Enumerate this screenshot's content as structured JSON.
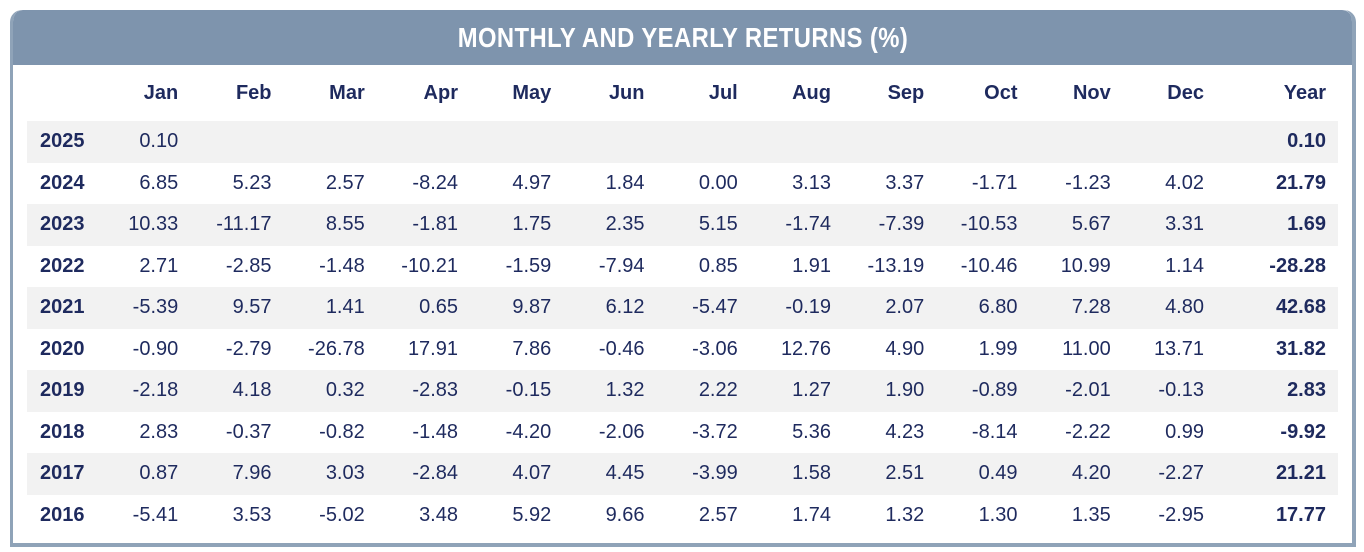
{
  "title": "MONTHLY AND YEARLY RETURNS (%)",
  "colors": {
    "header_bg": "#7E94AD",
    "border": "#8FA3B8",
    "text_navy": "#1E2A5E",
    "stripe_bg": "#F2F2F2"
  },
  "table": {
    "columns": [
      "Jan",
      "Feb",
      "Mar",
      "Apr",
      "May",
      "Jun",
      "Jul",
      "Aug",
      "Sep",
      "Oct",
      "Nov",
      "Dec",
      "Year"
    ],
    "rows": [
      {
        "year": "2025",
        "values": [
          "0.10",
          "",
          "",
          "",
          "",
          "",
          "",
          "",
          "",
          "",
          "",
          "",
          "0.10"
        ]
      },
      {
        "year": "2024",
        "values": [
          "6.85",
          "5.23",
          "2.57",
          "-8.24",
          "4.97",
          "1.84",
          "0.00",
          "3.13",
          "3.37",
          "-1.71",
          "-1.23",
          "4.02",
          "21.79"
        ]
      },
      {
        "year": "2023",
        "values": [
          "10.33",
          "-11.17",
          "8.55",
          "-1.81",
          "1.75",
          "2.35",
          "5.15",
          "-1.74",
          "-7.39",
          "-10.53",
          "5.67",
          "3.31",
          "1.69"
        ]
      },
      {
        "year": "2022",
        "values": [
          "2.71",
          "-2.85",
          "-1.48",
          "-10.21",
          "-1.59",
          "-7.94",
          "0.85",
          "1.91",
          "-13.19",
          "-10.46",
          "10.99",
          "1.14",
          "-28.28"
        ]
      },
      {
        "year": "2021",
        "values": [
          "-5.39",
          "9.57",
          "1.41",
          "0.65",
          "9.87",
          "6.12",
          "-5.47",
          "-0.19",
          "2.07",
          "6.80",
          "7.28",
          "4.80",
          "42.68"
        ]
      },
      {
        "year": "2020",
        "values": [
          "-0.90",
          "-2.79",
          "-26.78",
          "17.91",
          "7.86",
          "-0.46",
          "-3.06",
          "12.76",
          "4.90",
          "1.99",
          "11.00",
          "13.71",
          "31.82"
        ]
      },
      {
        "year": "2019",
        "values": [
          "-2.18",
          "4.18",
          "0.32",
          "-2.83",
          "-0.15",
          "1.32",
          "2.22",
          "1.27",
          "1.90",
          "-0.89",
          "-2.01",
          "-0.13",
          "2.83"
        ]
      },
      {
        "year": "2018",
        "values": [
          "2.83",
          "-0.37",
          "-0.82",
          "-1.48",
          "-4.20",
          "-2.06",
          "-3.72",
          "5.36",
          "4.23",
          "-8.14",
          "-2.22",
          "0.99",
          "-9.92"
        ]
      },
      {
        "year": "2017",
        "values": [
          "0.87",
          "7.96",
          "3.03",
          "-2.84",
          "4.07",
          "4.45",
          "-3.99",
          "1.58",
          "2.51",
          "0.49",
          "4.20",
          "-2.27",
          "21.21"
        ]
      },
      {
        "year": "2016",
        "values": [
          "-5.41",
          "3.53",
          "-5.02",
          "3.48",
          "5.92",
          "9.66",
          "2.57",
          "1.74",
          "1.32",
          "1.30",
          "1.35",
          "-2.95",
          "17.77"
        ]
      }
    ]
  }
}
